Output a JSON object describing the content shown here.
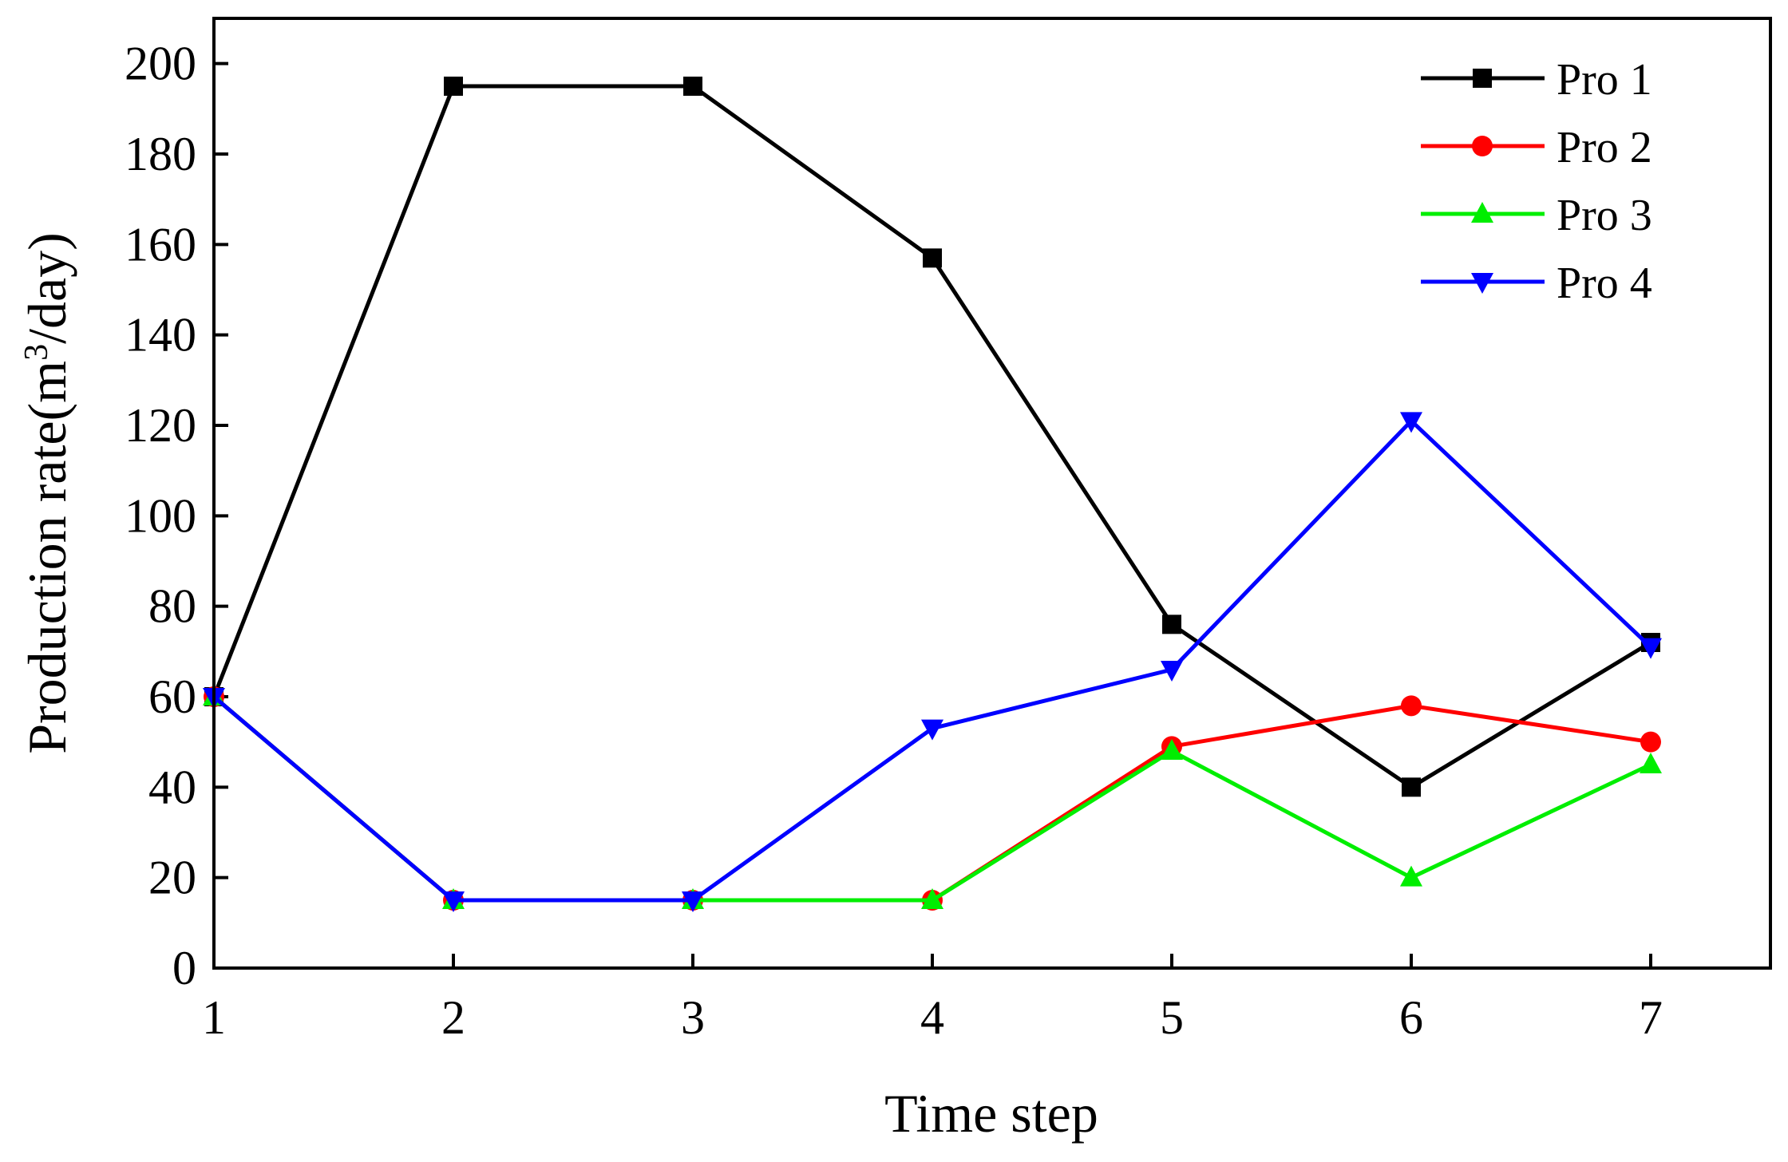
{
  "chart_data": {
    "type": "line",
    "title": "",
    "xlabel": "Time step",
    "ylabel": "Production rate(m³/day)",
    "ylabel_parts": {
      "pre": "Production rate(m",
      "sup": "3",
      "post": "/day)"
    },
    "xlim": [
      1,
      7.5
    ],
    "ylim": [
      0,
      210
    ],
    "x": [
      1,
      2,
      3,
      4,
      5,
      6,
      7
    ],
    "x_ticks": [
      "1",
      "2",
      "3",
      "4",
      "5",
      "6",
      "7"
    ],
    "y_ticks": [
      "0",
      "20",
      "40",
      "60",
      "80",
      "100",
      "120",
      "140",
      "160",
      "180",
      "200"
    ],
    "legend_position": "top-right",
    "series": [
      {
        "name": "Pro 1",
        "color": "#000000",
        "marker": "square",
        "values": [
          60,
          195,
          195,
          157,
          76,
          40,
          72
        ]
      },
      {
        "name": "Pro 2",
        "color": "#ff0000",
        "marker": "circle",
        "values": [
          60,
          15,
          15,
          15,
          49,
          58,
          50
        ]
      },
      {
        "name": "Pro 3",
        "color": "#00ee00",
        "marker": "triangle-up",
        "values": [
          60,
          15,
          15,
          15,
          48,
          20,
          45
        ]
      },
      {
        "name": "Pro 4",
        "color": "#0000ff",
        "marker": "triangle-down",
        "values": [
          60,
          15,
          15,
          53,
          66,
          121,
          71
        ]
      }
    ]
  }
}
